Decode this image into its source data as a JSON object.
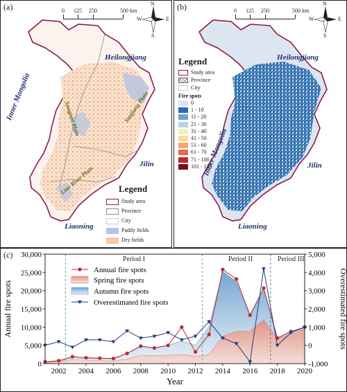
{
  "panel_a": {
    "label": "(a)",
    "scale_labels": [
      "0",
      "125",
      "250",
      "500 km"
    ],
    "compass": {
      "n": "N",
      "s": "S",
      "e": "E",
      "w": "W"
    },
    "provinces": {
      "heilongjiang": "Heilongjiang",
      "inner_mongolia": "Inner Mongolia",
      "jilin": "Jilin",
      "liaoning": "Liaoning"
    },
    "plains": {
      "sanjiang": "Sanjiang Plain",
      "songnen": "Songnen Plain",
      "liao_river": "Liao River Plain"
    },
    "legend": {
      "title": "Legend",
      "items": [
        {
          "label": "Study area",
          "color": "#8b1a4a",
          "style": "outline"
        },
        {
          "label": "Province",
          "color": "#888888",
          "style": "outline"
        },
        {
          "label": "City",
          "color": "#cccccc",
          "style": "outline"
        },
        {
          "label": "Paddy fields",
          "color": "#b4c4e4",
          "style": "fill"
        },
        {
          "label": "Dry fields",
          "color": "#f6c9a8",
          "style": "fill"
        }
      ]
    }
  },
  "panel_b": {
    "label": "(b)",
    "scale_labels": [
      "0",
      "125",
      "250",
      "500 km"
    ],
    "compass": {
      "n": "N",
      "s": "S",
      "e": "E",
      "w": "W"
    },
    "provinces": {
      "heilongjiang": "Heilongjiang",
      "inner_mongolia": "Inner Mongolia",
      "jilin": "Jilin",
      "liaoning": "Liaoning"
    },
    "legend": {
      "title": "Legend",
      "items": [
        {
          "label": "Study area",
          "color": "#8b1a4a",
          "style": "outline"
        },
        {
          "label": "Province",
          "color": "#666666",
          "style": "hatch"
        },
        {
          "label": "City",
          "color": "#cccccc",
          "style": "outline"
        }
      ],
      "fire_title": "Fire spots",
      "fire_classes": [
        {
          "label": "0",
          "color": "#dce6f0"
        },
        {
          "label": "1 - 10",
          "color": "#2b6cb0"
        },
        {
          "label": "11 - 20",
          "color": "#6ea3cf"
        },
        {
          "label": "21 - 30",
          "color": "#b9d3e6"
        },
        {
          "label": "31 - 40",
          "color": "#f1efc8"
        },
        {
          "label": "41 - 50",
          "color": "#f8dc98"
        },
        {
          "label": "51 - 60",
          "color": "#f2a873"
        },
        {
          "label": "61 - 70",
          "color": "#e06b4d"
        },
        {
          "label": "71 - 100",
          "color": "#c0282e"
        },
        {
          "label": "101 - 135",
          "color": "#7a0d1d"
        }
      ]
    }
  },
  "panel_c": {
    "label": "(c)"
  },
  "chart_data": {
    "type": "line",
    "x": [
      2001,
      2002,
      2003,
      2004,
      2005,
      2006,
      2007,
      2008,
      2009,
      2010,
      2011,
      2012,
      2013,
      2014,
      2015,
      2016,
      2017,
      2018,
      2019,
      2020
    ],
    "xlim": [
      2001,
      2020
    ],
    "xticks": [
      2002,
      2004,
      2006,
      2008,
      2010,
      2012,
      2014,
      2016,
      2018,
      2020
    ],
    "xlabel": "Year",
    "ylabel_left": "Annual fire spots",
    "ylim_left": [
      0,
      30000
    ],
    "yticks_left": [
      0,
      5000,
      10000,
      15000,
      20000,
      25000,
      30000
    ],
    "ylabel_right": "Overestimated fire spots",
    "ylim_right": [
      -1000,
      5000
    ],
    "yticks_right": [
      -1000,
      0,
      1000,
      2000,
      3000,
      4000,
      5000
    ],
    "series": [
      {
        "name": "Annual fire spots",
        "axis": "left",
        "kind": "line-marker",
        "color": "#c0282e",
        "values": [
          500,
          800,
          1900,
          1600,
          1500,
          1400,
          2800,
          4800,
          4300,
          5000,
          10000,
          3200,
          8000,
          25800,
          23200,
          13300,
          20700,
          7000,
          8800,
          10000
        ]
      },
      {
        "name": "Spring fire spots",
        "axis": "left",
        "kind": "area",
        "color": "#e8a090",
        "values": [
          300,
          500,
          1100,
          900,
          800,
          700,
          1200,
          2300,
          2100,
          2300,
          2500,
          2000,
          2500,
          7500,
          8800,
          8900,
          12000,
          6800,
          8000,
          9500
        ]
      },
      {
        "name": "Autumn fire spots",
        "axis": "left",
        "kind": "area",
        "color": "#8fb7d8",
        "values": [
          400,
          600,
          1600,
          1400,
          1300,
          1300,
          2700,
          4700,
          4200,
          5000,
          6200,
          5000,
          10200,
          25300,
          22500,
          13000,
          20200,
          6900,
          8700,
          9800
        ]
      },
      {
        "name": "Overestimated fire spots",
        "axis": "right",
        "kind": "line-triangle",
        "color": "#1f3a7a",
        "values": [
          0,
          200,
          -100,
          300,
          300,
          200,
          800,
          400,
          500,
          700,
          300,
          500,
          1300,
          400,
          100,
          -900,
          4200,
          0,
          700,
          1000
        ]
      }
    ],
    "periods": [
      {
        "label": "Period I",
        "start": 2002.5
      },
      {
        "label": "Period II",
        "start": 2012.5
      },
      {
        "label": "Period III",
        "start": 2017.5
      }
    ]
  }
}
